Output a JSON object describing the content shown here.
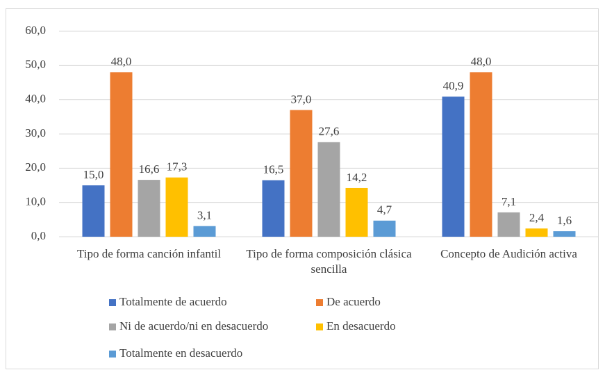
{
  "chart_data": {
    "type": "bar",
    "categories": [
      "Tipo de forma canción infantil",
      "Tipo de forma composición clásica sencilla",
      "Concepto de Audición activa"
    ],
    "series": [
      {
        "name": "Totalmente de acuerdo",
        "color": "#4472c4",
        "values": [
          15.0,
          16.5,
          40.9
        ],
        "value_labels": [
          "15,0",
          "16,5",
          "40,9"
        ]
      },
      {
        "name": "De acuerdo",
        "color": "#ed7d31",
        "values": [
          48.0,
          37.0,
          48.0
        ],
        "value_labels": [
          "48,0",
          "37,0",
          "48,0"
        ]
      },
      {
        "name": "Ni de acuerdo/ni en desacuerdo",
        "color": "#a5a5a5",
        "values": [
          16.6,
          27.6,
          7.1
        ],
        "value_labels": [
          "16,6",
          "27,6",
          "7,1"
        ]
      },
      {
        "name": "En desacuerdo",
        "color": "#ffc000",
        "values": [
          17.3,
          14.2,
          2.4
        ],
        "value_labels": [
          "17,3",
          "14,2",
          "2,4"
        ]
      },
      {
        "name": "Totalmente en desacuerdo",
        "color": "#5b9bd5",
        "values": [
          3.1,
          4.7,
          1.6
        ],
        "value_labels": [
          "3,1",
          "4,7",
          "1,6"
        ]
      }
    ],
    "ylim": [
      0,
      60
    ],
    "yticks": [
      {
        "value": 0,
        "label": "0,0"
      },
      {
        "value": 10,
        "label": "10,0"
      },
      {
        "value": 20,
        "label": "20,0"
      },
      {
        "value": 30,
        "label": "30,0"
      },
      {
        "value": 40,
        "label": "40,0"
      },
      {
        "value": 50,
        "label": "50,0"
      },
      {
        "value": 60,
        "label": "60,0"
      }
    ],
    "grid": true
  }
}
